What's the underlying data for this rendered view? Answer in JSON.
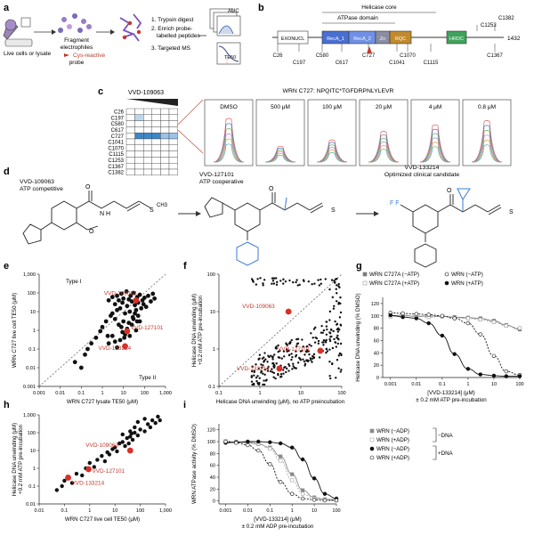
{
  "panels": {
    "a": "a",
    "b": "b",
    "c": "c",
    "d": "d",
    "e": "e",
    "f": "f",
    "g": "g",
    "h": "h",
    "i": "i"
  },
  "panel_a": {
    "live_cells": "Live cells or lysate",
    "fragment": "Fragment",
    "electrophiles": "electrophiles",
    "cys_reactive": "Cys-reactive",
    "probe": "probe",
    "step1": "1. Trypsin digest",
    "step2": "2. Enrich probe-",
    "step2b": "labelled peptides",
    "step3": "3. Targeted MS",
    "auc": "AUC",
    "te50": "TE50"
  },
  "panel_b": {
    "helicase_core": "Helicase core",
    "atpase": "ATPase domain",
    "domains": [
      "EXONUCL",
      "RecA_1",
      "RecA_2",
      "Zn",
      "RQC",
      "HRDC"
    ],
    "length": "1432",
    "cys_top": [
      "C1253",
      "C1382"
    ],
    "cys_bottom": [
      "C26",
      "C197",
      "C580",
      "C617",
      "C727",
      "C1041",
      "C1070",
      "C1115",
      "C1367"
    ]
  },
  "panel_c": {
    "compound": "VVD-109063",
    "cys_list": [
      "C26",
      "C197",
      "C580",
      "C617",
      "C727",
      "C1041",
      "C1070",
      "C1115",
      "C1253",
      "C1367",
      "C1382"
    ],
    "peptide": "WRN C727: NPQITC*TGFDRPNLYLEVR",
    "concentrations": [
      "DMSO",
      "500 μM",
      "100 μM",
      "20 μM",
      "4 μM",
      "0.8 μM"
    ]
  },
  "panel_d": {
    "cmpd1_name": "VVD-109063",
    "cmpd1_desc": "ATP competitive",
    "cmpd2_name": "VVD-127101",
    "cmpd2_desc": "ATP cooperative",
    "cmpd3_name": "VVD-133214",
    "cmpd3_desc": "Optimized clinical candidate"
  },
  "chart_data": [
    {
      "panel": "e",
      "type": "scatter",
      "xlabel": "WRN C727 lysate TE50 (μM)",
      "ylabel": "WRN C727 live cell TE50 (μM)",
      "xscale": "log",
      "yscale": "log",
      "xlim": [
        0.001,
        1000
      ],
      "ylim": [
        0.001,
        1000
      ],
      "x_ticks": [
        "0.001",
        "0.01",
        "0.1",
        "1",
        "10",
        "100",
        "1,000"
      ],
      "y_ticks": [
        "0.001",
        "0.01",
        "0.1",
        "1",
        "10",
        "100",
        "1,000"
      ],
      "region_labels": [
        "Type I",
        "Type II"
      ],
      "highlights": [
        {
          "name": "VVD-109063",
          "x": 40,
          "y": 40
        },
        {
          "name": "VVD-127101",
          "x": 15,
          "y": 0.9
        },
        {
          "name": "VVD-133214",
          "x": 12,
          "y": 0.14
        }
      ],
      "points": [
        [
          2,
          40
        ],
        [
          3,
          60
        ],
        [
          4,
          25
        ],
        [
          5,
          70
        ],
        [
          6,
          40
        ],
        [
          7,
          15
        ],
        [
          8,
          90
        ],
        [
          9,
          30
        ],
        [
          10,
          50
        ],
        [
          12,
          8
        ],
        [
          14,
          120
        ],
        [
          15,
          20
        ],
        [
          18,
          45
        ],
        [
          20,
          10
        ],
        [
          22,
          70
        ],
        [
          25,
          35
        ],
        [
          28,
          5
        ],
        [
          30,
          100
        ],
        [
          35,
          22
        ],
        [
          40,
          12
        ],
        [
          45,
          60
        ],
        [
          50,
          30
        ],
        [
          60,
          80
        ],
        [
          70,
          15
        ],
        [
          80,
          40
        ],
        [
          90,
          25
        ],
        [
          100,
          55
        ],
        [
          120,
          18
        ],
        [
          150,
          70
        ],
        [
          200,
          35
        ],
        [
          250,
          90
        ],
        [
          300,
          50
        ],
        [
          4,
          4
        ],
        [
          6,
          2
        ],
        [
          8,
          1.5
        ],
        [
          10,
          3
        ],
        [
          12,
          0.6
        ],
        [
          15,
          1.2
        ],
        [
          20,
          0.5
        ],
        [
          25,
          2
        ],
        [
          30,
          4
        ],
        [
          40,
          1
        ],
        [
          50,
          6
        ],
        [
          60,
          3
        ],
        [
          7,
          0.3
        ],
        [
          9,
          0.8
        ],
        [
          11,
          0.4
        ],
        [
          18,
          2.5
        ],
        [
          35,
          8
        ],
        [
          45,
          3
        ],
        [
          3,
          8
        ],
        [
          5,
          12
        ],
        [
          2.5,
          6
        ],
        [
          1.5,
          3
        ],
        [
          1,
          1.5
        ],
        [
          0.8,
          0.9
        ],
        [
          1.8,
          0.5
        ],
        [
          0.5,
          0.4
        ],
        [
          0.3,
          0.2
        ],
        [
          0.2,
          0.1
        ],
        [
          0.15,
          0.05
        ],
        [
          2,
          0.2
        ],
        [
          3,
          0.5
        ],
        [
          4,
          0.25
        ],
        [
          5,
          0.12
        ],
        [
          0.05,
          0.02
        ],
        [
          0.1,
          0.01
        ]
      ]
    },
    {
      "panel": "f",
      "type": "scatter",
      "xlabel": "Helicase DNA unwinding (μM), no ATP preincubation",
      "ylabel": "Helicase DNA unwinding (μM) +0.2 mM ATP pre-incubation",
      "xscale": "log",
      "yscale": "log",
      "xlim": [
        0.1,
        100
      ],
      "ylim": [
        0.1,
        100
      ],
      "x_ticks": [
        "0.1",
        "1",
        "10",
        "100"
      ],
      "y_ticks": [
        "0.1",
        "1",
        "10",
        "100"
      ],
      "highlights": [
        {
          "name": "VVD-109063",
          "x": 5,
          "y": 10
        },
        {
          "name": "VVD-127101",
          "x": 30,
          "y": 0.9
        },
        {
          "name": "VVD-133214",
          "x": 3,
          "y": 0.3
        }
      ]
    },
    {
      "panel": "g",
      "type": "line",
      "xlabel": "[VVD-133214] (μM)",
      "xlabel2": "± 0.2 mM ATP pre-incubation",
      "ylabel": "Helicase DNA unwinding (% DMSO)",
      "xscale": "log",
      "xlim": [
        0.0005,
        100
      ],
      "ylim": [
        0,
        130
      ],
      "x_ticks": [
        "0.001",
        "0.01",
        "0.1",
        "1",
        "10",
        "100"
      ],
      "y_ticks": [
        "0",
        "20",
        "40",
        "60",
        "80",
        "100",
        "120"
      ],
      "x": [
        0.001,
        0.003,
        0.01,
        0.03,
        0.1,
        0.3,
        1,
        3,
        10,
        30,
        100
      ],
      "series": [
        {
          "name": "WRN C727A (−ATP)",
          "values": [
            100,
            101,
            99,
            100,
            99,
            98,
            97,
            96,
            92,
            85,
            78
          ]
        },
        {
          "name": "WRN C727A (+ATP)",
          "values": [
            99,
            100,
            100,
            98,
            99,
            97,
            96,
            94,
            90,
            84,
            80
          ]
        },
        {
          "name": "WRN (−ATP)",
          "values": [
            105,
            104,
            103,
            102,
            100,
            96,
            88,
            70,
            35,
            10,
            4
          ]
        },
        {
          "name": "WRN (+ATP)",
          "values": [
            101,
            98,
            96,
            88,
            68,
            38,
            14,
            5,
            3,
            2,
            2
          ]
        }
      ]
    },
    {
      "panel": "h",
      "type": "scatter",
      "xlabel": "WRN C727 live cell TE50 (μM)",
      "ylabel": "Helicase DNA unwinding (μM) +0.2 mM ATP pre-incubation",
      "xscale": "log",
      "yscale": "log",
      "xlim": [
        0.01,
        1000
      ],
      "ylim": [
        0.01,
        1000
      ],
      "x_ticks": [
        "0.01",
        "0.1",
        "1",
        "10",
        "100",
        "1,000"
      ],
      "y_ticks": [
        "0.01",
        "0.1",
        "1",
        "10",
        "100",
        "1,000"
      ],
      "highlights": [
        {
          "name": "VVD-109063",
          "x": 40,
          "y": 10
        },
        {
          "name": "VVD-127101",
          "x": 0.9,
          "y": 0.9
        },
        {
          "name": "VVD-133214",
          "x": 0.14,
          "y": 0.3
        }
      ],
      "points": [
        [
          0.05,
          0.06
        ],
        [
          0.08,
          0.1
        ],
        [
          0.1,
          0.2
        ],
        [
          0.2,
          0.15
        ],
        [
          0.3,
          0.5
        ],
        [
          0.5,
          0.4
        ],
        [
          0.7,
          1
        ],
        [
          1,
          2
        ],
        [
          1.5,
          1.2
        ],
        [
          2,
          3
        ],
        [
          3,
          5
        ],
        [
          4,
          2.5
        ],
        [
          5,
          8
        ],
        [
          6,
          6
        ],
        [
          8,
          12
        ],
        [
          10,
          15
        ],
        [
          12,
          9
        ],
        [
          15,
          25
        ],
        [
          20,
          30
        ],
        [
          25,
          18
        ],
        [
          30,
          50
        ],
        [
          40,
          60
        ],
        [
          50,
          40
        ],
        [
          60,
          100
        ],
        [
          80,
          70
        ],
        [
          100,
          150
        ],
        [
          150,
          120
        ],
        [
          200,
          300
        ],
        [
          250,
          200
        ],
        [
          300,
          500
        ],
        [
          400,
          350
        ],
        [
          500,
          800
        ],
        [
          600,
          500
        ],
        [
          150,
          600
        ],
        [
          80,
          400
        ],
        [
          60,
          200
        ],
        [
          40,
          120
        ],
        [
          20,
          80
        ],
        [
          35,
          25
        ],
        [
          45,
          90
        ]
      ]
    },
    {
      "panel": "i",
      "type": "line",
      "xlabel": "[VVD-133214] (μM)",
      "xlabel2": "± 0.2 mM ADP pre-incubation",
      "ylabel": "WRN ATPase activity (% DMSO)",
      "xscale": "log",
      "xlim": [
        0.0005,
        100
      ],
      "ylim": [
        -5,
        130
      ],
      "x_ticks": [
        "0.001",
        "0.01",
        "0.1",
        "1",
        "10",
        "100"
      ],
      "y_ticks": [
        "0",
        "20",
        "40",
        "60",
        "80",
        "100",
        "120"
      ],
      "group_labels": [
        "−DNA",
        "+DNA"
      ],
      "x": [
        0.001,
        0.003,
        0.01,
        0.03,
        0.1,
        0.3,
        1,
        3,
        10,
        30,
        100
      ],
      "series": [
        {
          "name": "WRN (−ADP)",
          "values": [
            100,
            99,
            98,
            96,
            90,
            75,
            45,
            18,
            6,
            3,
            2
          ]
        },
        {
          "name": "WRN (+ADP)",
          "values": [
            101,
            100,
            99,
            97,
            88,
            68,
            35,
            12,
            4,
            2,
            1
          ]
        },
        {
          "name": "WRN (−ADP)",
          "values": [
            98,
            99,
            100,
            100,
            99,
            97,
            90,
            70,
            38,
            12,
            4
          ]
        },
        {
          "name": "WRN (+ADP)",
          "values": [
            100,
            98,
            94,
            85,
            62,
            32,
            12,
            4,
            2,
            1,
            1
          ]
        }
      ]
    }
  ]
}
